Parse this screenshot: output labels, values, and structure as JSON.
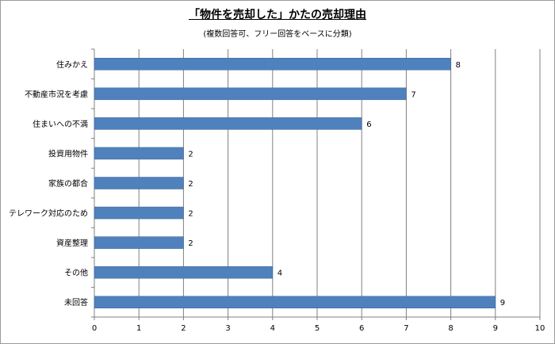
{
  "chart_data": {
    "type": "bar",
    "orientation": "horizontal",
    "title": "「物件を売却した」かたの売却理由",
    "subtitle": "(複数回答可、フリー回答をベースに分類)",
    "categories": [
      "住みかえ",
      "不動産市況を考慮",
      "住まいへの不満",
      "投資用物件",
      "家族の都合",
      "テレワーク対応のため",
      "資産整理",
      "その他",
      "未回答"
    ],
    "values": [
      8,
      7,
      6,
      2,
      2,
      2,
      2,
      4,
      9
    ],
    "xlim": [
      0,
      10
    ],
    "x_ticks": [
      0,
      1,
      2,
      3,
      4,
      5,
      6,
      7,
      8,
      9,
      10
    ],
    "grid": "vertical",
    "legend": "none",
    "data_labels": true,
    "colors": {
      "bar": "#4f81bd",
      "bar_edge": "#3a6593",
      "grid": "#808080",
      "text": "#000000"
    }
  }
}
